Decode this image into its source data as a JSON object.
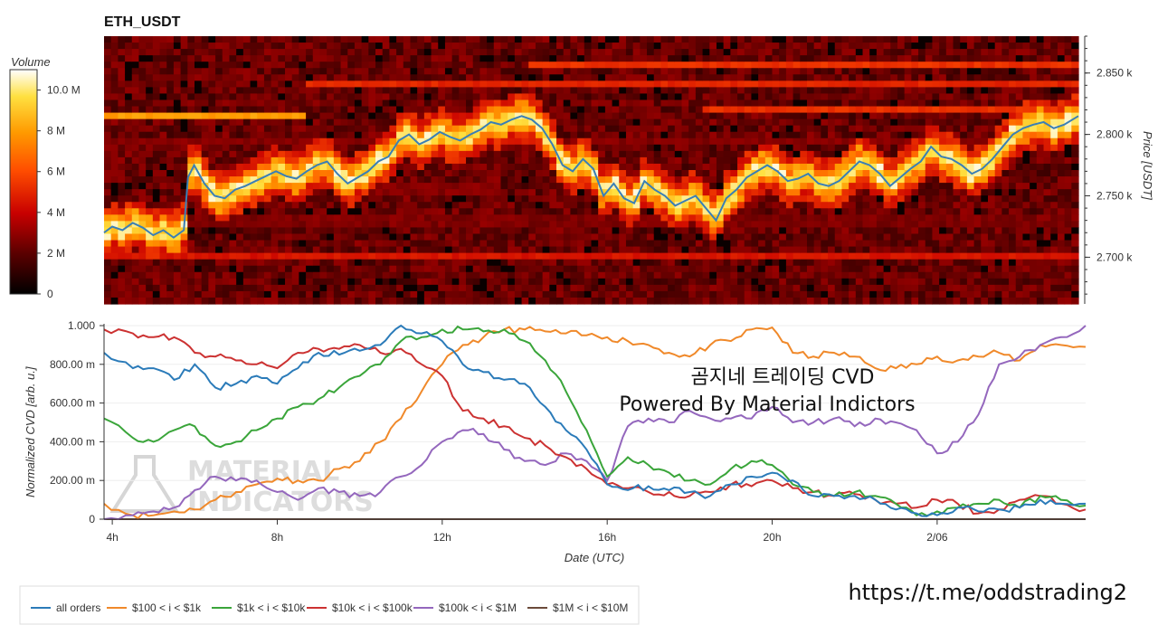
{
  "heatmap": {
    "title": "ETH_USDT",
    "colorbar_title": "Volume",
    "colorbar_ticks": [
      "0",
      "2 M",
      "4 M",
      "6 M",
      "8 M",
      "10.0 M"
    ],
    "price_axis_label": "Price [USDT]",
    "price_ticks": [
      "2.700 k",
      "2.750 k",
      "2.800 k",
      "2.850 k"
    ]
  },
  "cvd": {
    "ylabel": "Normalized CVD [arb. u.]",
    "xlabel": "Date (UTC)",
    "yticks": [
      "0",
      "200.00 m",
      "400.00 m",
      "600.00 m",
      "800.00 m",
      "1.000"
    ],
    "xticks": [
      "4h",
      "8h",
      "12h",
      "16h",
      "20h",
      "2/06"
    ]
  },
  "watermark": {
    "line1": "MATERIAL",
    "line2": "INDICATORS"
  },
  "overlay": {
    "line1": "곰지네 트레이딩 CVD",
    "line2": "Powered By Material Indictors"
  },
  "url": "https://t.me/oddstrading2",
  "legend": [
    {
      "label": "all orders",
      "color": "#2b7bb9"
    },
    {
      "label": "$100 < i < $1k",
      "color": "#f0892a"
    },
    {
      "label": "$1k < i < $10k",
      "color": "#3aa53a"
    },
    {
      "label": "$10k < i < $100k",
      "color": "#cc3232"
    },
    {
      "label": "$100k < i < $1M",
      "color": "#9467bd"
    },
    {
      "label": "$1M < i < $10M",
      "color": "#6b4a3a"
    }
  ],
  "chart_data": [
    {
      "type": "heatmap",
      "title": "ETH_USDT",
      "ylabel": "Price [USDT]",
      "ylim": [
        2662,
        2880
      ],
      "colorbar_range": [
        0,
        11000000
      ],
      "price_series": {
        "x": [
          3.8,
          4.0,
          4.25,
          4.5,
          4.75,
          5.0,
          5.25,
          5.5,
          5.75,
          5.85,
          6.0,
          6.25,
          6.5,
          6.75,
          7.0,
          7.25,
          7.5,
          7.75,
          8.0,
          8.25,
          8.5,
          8.75,
          9.0,
          9.25,
          9.5,
          9.75,
          10.0,
          10.25,
          10.5,
          10.75,
          11.0,
          11.25,
          11.5,
          11.75,
          12.0,
          12.25,
          12.5,
          12.75,
          13.0,
          13.25,
          13.5,
          13.75,
          14.0,
          14.25,
          14.5,
          14.75,
          15.0,
          15.25,
          15.5,
          15.75,
          16.0,
          16.25,
          16.5,
          16.75,
          17.0,
          17.25,
          17.5,
          17.75,
          18.0,
          18.25,
          18.5,
          18.75,
          19.0,
          19.25,
          19.5,
          19.75,
          20.0,
          20.25,
          20.5,
          20.75,
          21.0,
          21.25,
          21.5,
          21.75,
          22.0,
          22.25,
          22.5,
          22.75,
          23.0,
          23.25,
          23.5,
          23.75,
          24.0,
          24.25,
          24.5,
          24.75,
          25.0,
          25.25,
          25.5,
          25.75,
          26.0,
          26.25,
          26.5,
          26.75,
          27.0,
          27.25,
          27.6
        ],
        "y": [
          2720,
          2725,
          2722,
          2728,
          2724,
          2718,
          2722,
          2716,
          2722,
          2765,
          2775,
          2760,
          2750,
          2748,
          2755,
          2758,
          2762,
          2766,
          2770,
          2766,
          2764,
          2770,
          2775,
          2778,
          2768,
          2760,
          2765,
          2770,
          2778,
          2782,
          2795,
          2800,
          2792,
          2796,
          2802,
          2798,
          2795,
          2800,
          2804,
          2810,
          2808,
          2812,
          2815,
          2812,
          2805,
          2792,
          2775,
          2770,
          2780,
          2772,
          2750,
          2760,
          2748,
          2744,
          2762,
          2755,
          2750,
          2742,
          2746,
          2750,
          2740,
          2730,
          2748,
          2755,
          2765,
          2770,
          2775,
          2770,
          2762,
          2764,
          2768,
          2760,
          2758,
          2762,
          2770,
          2778,
          2775,
          2768,
          2758,
          2765,
          2772,
          2778,
          2790,
          2782,
          2780,
          2775,
          2768,
          2772,
          2780,
          2790,
          2800,
          2805,
          2808,
          2810,
          2805,
          2808,
          2815
        ]
      }
    },
    {
      "type": "line",
      "xlabel": "Date (UTC)",
      "ylabel": "Normalized CVD [arb. u.]",
      "ylim": [
        0,
        1.0
      ],
      "xlim": [
        3.8,
        27.6
      ],
      "x": [
        3.8,
        4.5,
        5.0,
        5.5,
        6.0,
        6.5,
        7.0,
        7.5,
        8.0,
        8.5,
        9.0,
        9.5,
        10.0,
        10.5,
        11.0,
        11.5,
        12.0,
        12.5,
        13.0,
        13.5,
        14.0,
        14.5,
        15.0,
        15.5,
        16.0,
        16.5,
        17.0,
        17.5,
        18.0,
        18.5,
        19.0,
        19.5,
        20.0,
        20.5,
        21.0,
        21.5,
        22.0,
        22.5,
        23.0,
        23.5,
        24.0,
        24.5,
        25.0,
        25.5,
        26.0,
        26.5,
        27.0,
        27.6
      ],
      "series": [
        {
          "name": "all orders",
          "values": [
            0.86,
            0.78,
            0.78,
            0.72,
            0.8,
            0.68,
            0.7,
            0.74,
            0.7,
            0.78,
            0.86,
            0.85,
            0.87,
            0.9,
            1.0,
            0.96,
            0.92,
            0.8,
            0.76,
            0.72,
            0.7,
            0.58,
            0.46,
            0.36,
            0.18,
            0.15,
            0.17,
            0.15,
            0.14,
            0.12,
            0.18,
            0.22,
            0.24,
            0.2,
            0.12,
            0.12,
            0.12,
            0.1,
            0.05,
            0.03,
            0.02,
            0.06,
            0.04,
            0.05,
            0.06,
            0.1,
            0.08,
            0.08
          ]
        },
        {
          "name": "$100 < i < $1k",
          "values": [
            0.08,
            0.02,
            0.02,
            0.04,
            0.05,
            0.1,
            0.14,
            0.18,
            0.21,
            0.2,
            0.2,
            0.26,
            0.3,
            0.4,
            0.52,
            0.66,
            0.8,
            0.9,
            0.94,
            0.98,
            0.98,
            0.97,
            0.96,
            0.95,
            0.94,
            0.92,
            0.9,
            0.86,
            0.84,
            0.9,
            0.92,
            0.98,
            0.99,
            0.86,
            0.84,
            0.86,
            0.84,
            0.78,
            0.78,
            0.8,
            0.84,
            0.82,
            0.84,
            0.86,
            0.82,
            0.9,
            0.9,
            0.89
          ]
        },
        {
          "name": "$1k < i < $10k",
          "values": [
            0.52,
            0.42,
            0.4,
            0.46,
            0.48,
            0.38,
            0.4,
            0.46,
            0.52,
            0.58,
            0.62,
            0.68,
            0.74,
            0.8,
            0.92,
            0.94,
            0.98,
            0.98,
            0.97,
            0.98,
            0.92,
            0.82,
            0.66,
            0.46,
            0.22,
            0.32,
            0.28,
            0.24,
            0.2,
            0.18,
            0.26,
            0.3,
            0.28,
            0.18,
            0.14,
            0.12,
            0.14,
            0.12,
            0.08,
            0.02,
            0.04,
            0.06,
            0.08,
            0.1,
            0.06,
            0.12,
            0.1,
            0.07
          ]
        },
        {
          "name": "$10k < i < $100k",
          "values": [
            0.98,
            0.96,
            0.94,
            0.94,
            0.86,
            0.84,
            0.82,
            0.8,
            0.78,
            0.86,
            0.88,
            0.88,
            0.9,
            0.86,
            0.88,
            0.8,
            0.74,
            0.56,
            0.52,
            0.48,
            0.42,
            0.38,
            0.32,
            0.26,
            0.18,
            0.16,
            0.14,
            0.14,
            0.12,
            0.14,
            0.18,
            0.17,
            0.2,
            0.16,
            0.14,
            0.12,
            0.13,
            0.1,
            0.08,
            0.06,
            0.1,
            0.08,
            0.03,
            0.05,
            0.1,
            0.12,
            0.08,
            0.05
          ]
        },
        {
          "name": "$100k < i < $1M",
          "values": [
            0.0,
            0.02,
            0.04,
            0.06,
            0.15,
            0.22,
            0.2,
            0.2,
            0.14,
            0.1,
            0.16,
            0.14,
            0.12,
            0.14,
            0.22,
            0.28,
            0.4,
            0.46,
            0.44,
            0.36,
            0.3,
            0.28,
            0.34,
            0.3,
            0.2,
            0.48,
            0.52,
            0.5,
            0.56,
            0.52,
            0.52,
            0.52,
            0.58,
            0.5,
            0.5,
            0.52,
            0.48,
            0.52,
            0.5,
            0.46,
            0.34,
            0.4,
            0.54,
            0.8,
            0.84,
            0.9,
            0.94,
            1.0
          ]
        },
        {
          "name": "$1M < i < $10M",
          "values": [
            0,
            0,
            0,
            0,
            0,
            0,
            0,
            0,
            0,
            0,
            0,
            0,
            0,
            0,
            0,
            0,
            0,
            0,
            0,
            0,
            0,
            0,
            0,
            0,
            0,
            0,
            0,
            0,
            0,
            0,
            0,
            0,
            0,
            0,
            0,
            0,
            0,
            0,
            0,
            0,
            0,
            0,
            0,
            0,
            0,
            0,
            0,
            0
          ]
        }
      ]
    }
  ]
}
